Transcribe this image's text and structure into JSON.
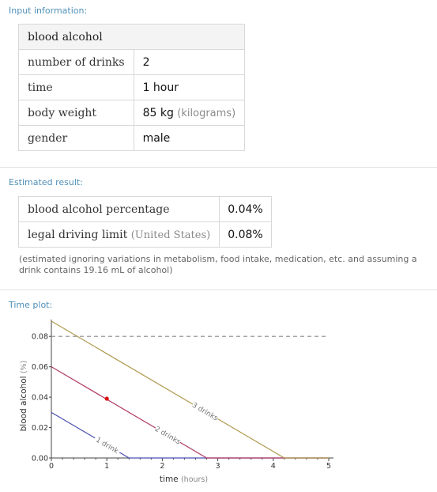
{
  "input": {
    "title": "Input information:",
    "header": "blood alcohol",
    "rows": [
      {
        "label": "number of drinks",
        "value": "2",
        "unit": ""
      },
      {
        "label": "time",
        "value": "1 hour",
        "unit": ""
      },
      {
        "label": "body weight",
        "value": "85 kg",
        "unit": "(kilograms)"
      },
      {
        "label": "gender",
        "value": "male",
        "unit": ""
      }
    ]
  },
  "result": {
    "title": "Estimated result:",
    "rows": [
      {
        "label": "blood alcohol percentage",
        "qualifier": "",
        "value": "0.04%"
      },
      {
        "label": "legal driving limit",
        "qualifier": "(United States)",
        "value": "0.08%"
      }
    ],
    "note": "(estimated ignoring variations in metabolism, food intake, medication, etc. and assuming a drink contains 19.16 mL of alcohol)"
  },
  "plot": {
    "title": "Time plot:"
  },
  "chart_data": {
    "type": "line",
    "xlabel": "time",
    "xunit": "(hours)",
    "ylabel": "blood alcohol",
    "yunit": "(%)",
    "xlim": [
      0,
      5
    ],
    "ylim": [
      0,
      0.09
    ],
    "xticks": [
      0,
      1,
      2,
      3,
      4,
      5
    ],
    "yticks": [
      "0.00",
      "0.02",
      "0.04",
      "0.06",
      "0.08"
    ],
    "limit_line": 0.08,
    "series": [
      {
        "name": "1 drink",
        "color": "#4a4fb0",
        "points": [
          [
            0,
            0.03
          ],
          [
            1.4,
            0.0
          ],
          [
            5,
            0.0
          ]
        ]
      },
      {
        "name": "2 drinks",
        "color": "#b03a63",
        "points": [
          [
            0,
            0.06
          ],
          [
            2.8,
            0.0
          ],
          [
            5,
            0.0
          ]
        ]
      },
      {
        "name": "3 drinks",
        "color": "#b09a50",
        "points": [
          [
            0,
            0.09
          ],
          [
            4.2,
            0.0
          ],
          [
            5,
            0.0
          ]
        ]
      }
    ],
    "marker": {
      "x": 1,
      "y": 0.039,
      "color": "#dd1111"
    }
  }
}
